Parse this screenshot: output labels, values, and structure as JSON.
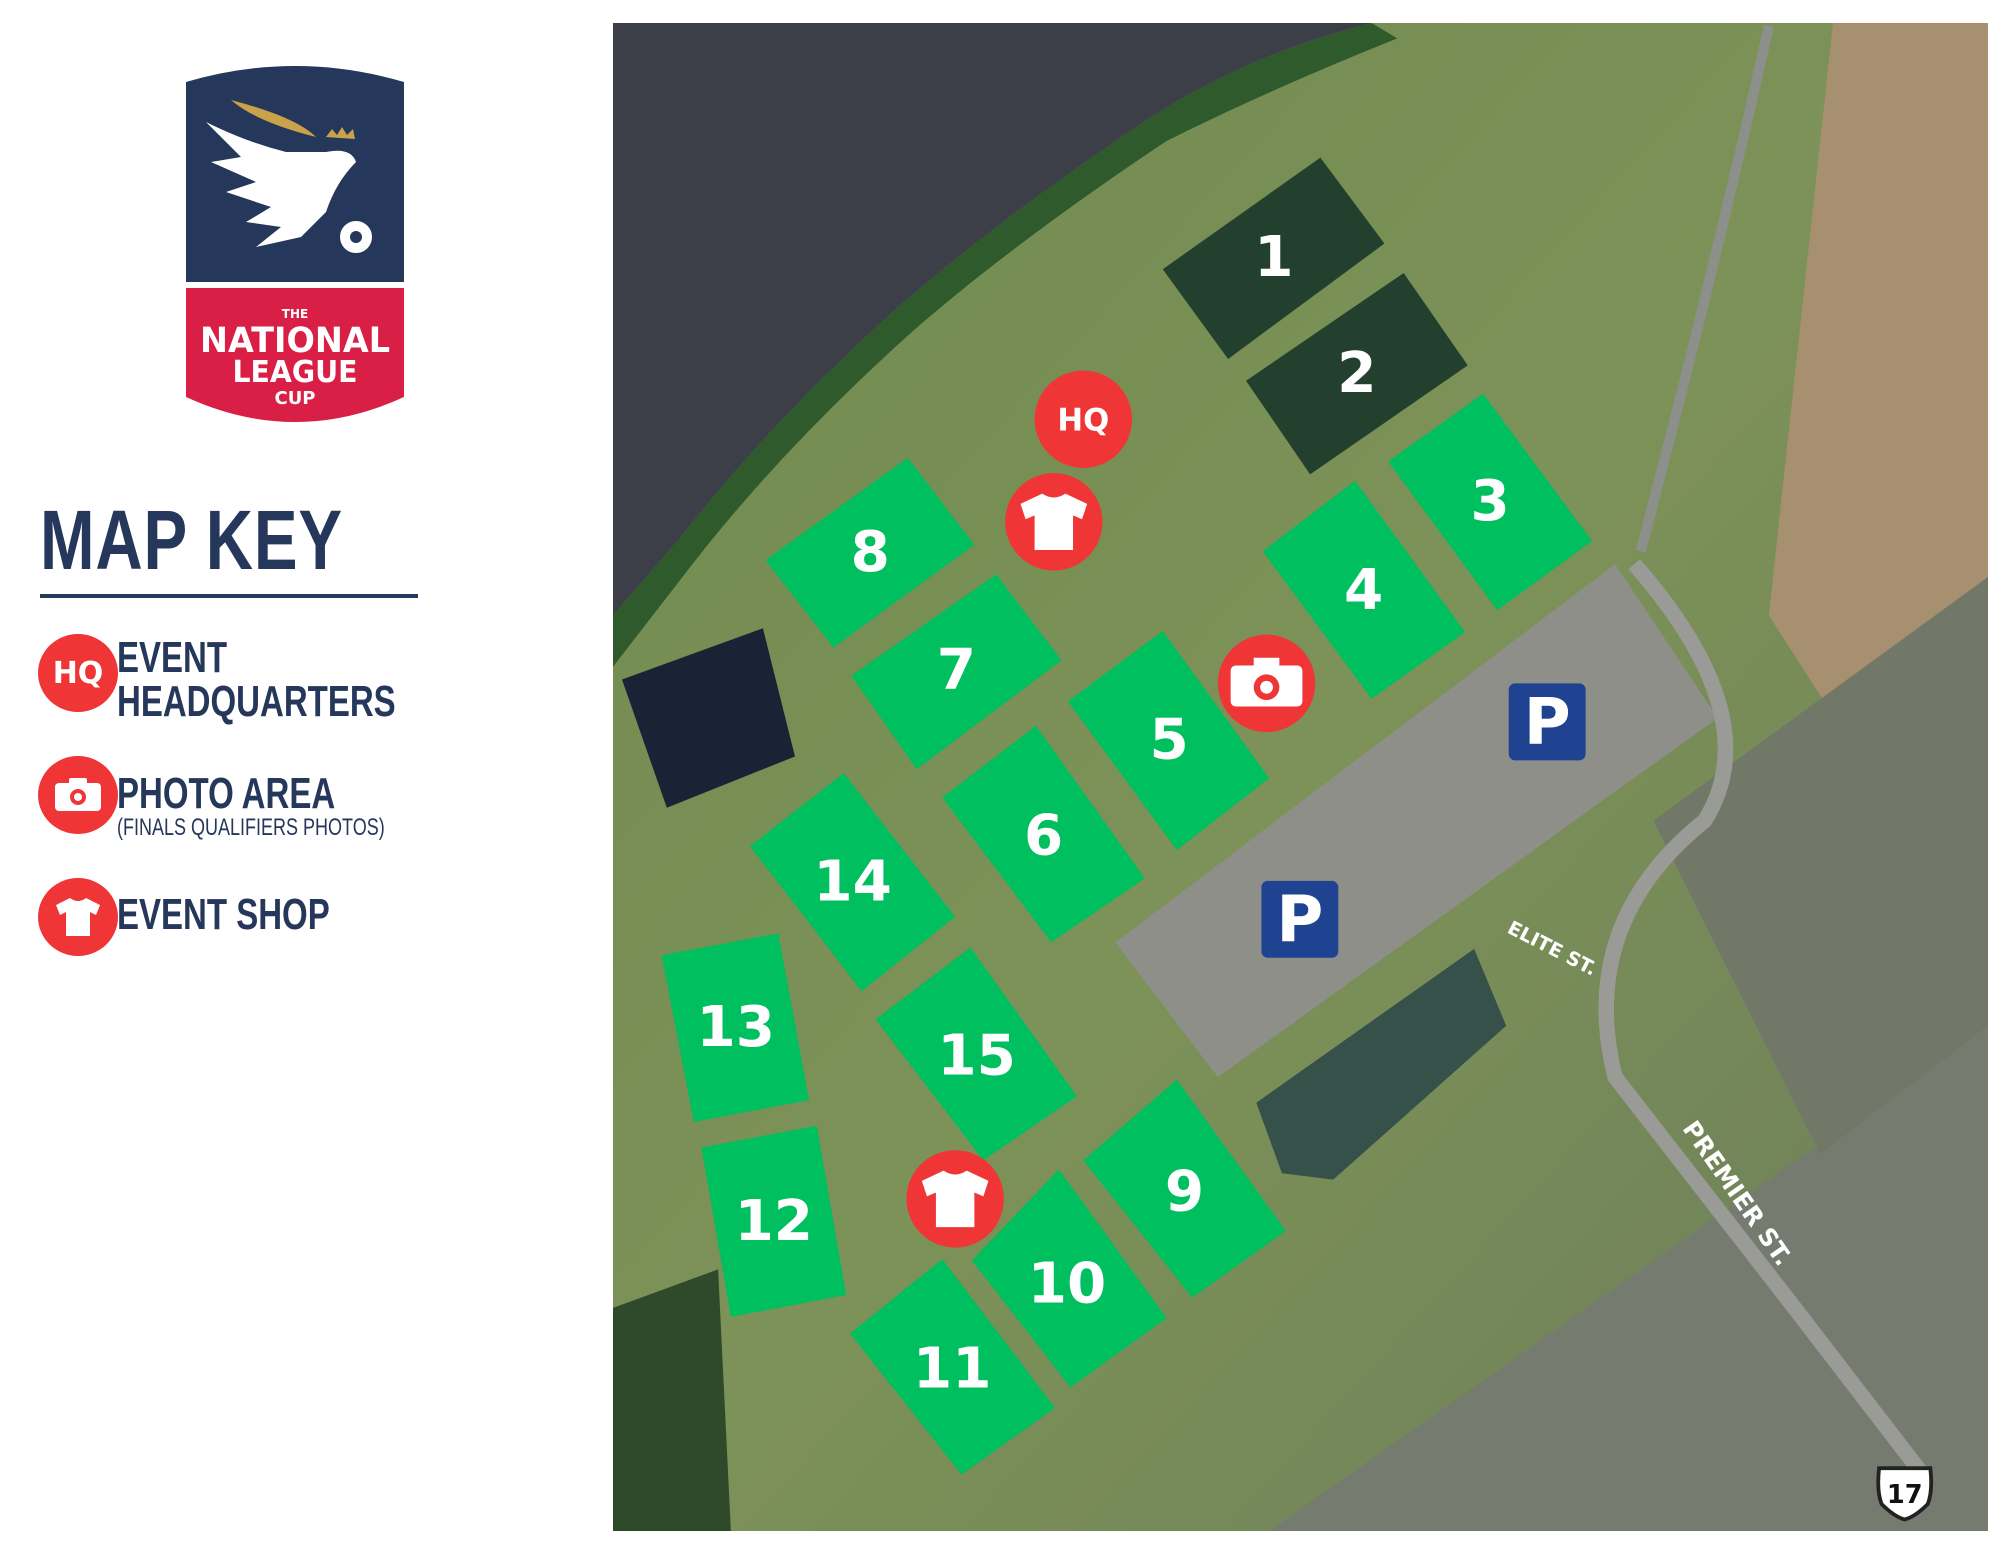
{
  "logo": {
    "line1": "THE",
    "line2": "NATIONAL",
    "line3": "LEAGUE",
    "line4": "CUP",
    "colors": {
      "navy": "#25375a",
      "red": "#d91f45",
      "gold": "#c9a24a"
    }
  },
  "key": {
    "title": "MAP KEY",
    "items": [
      {
        "icon": "hq-icon",
        "badge": "HQ",
        "label": "EVENT",
        "label2": "HEADQUARTERS"
      },
      {
        "icon": "camera-icon",
        "label": "PHOTO AREA",
        "sublabel": "(FINALS QUALIFIERS PHOTOS)"
      },
      {
        "icon": "tshirt-icon",
        "label": "EVENT SHOP"
      }
    ]
  },
  "map": {
    "colors": {
      "field_active": "#00bf5f",
      "field_dark": "#23402f",
      "marker": "#ef3535",
      "parking": "#1f4390"
    },
    "fields": [
      "1",
      "2",
      "3",
      "4",
      "5",
      "6",
      "7",
      "8",
      "9",
      "10",
      "11",
      "12",
      "13",
      "14",
      "15"
    ],
    "hq_badge": "HQ",
    "parking": "P",
    "streets": {
      "elite": "ELITE ST.",
      "premier": "PREMIER ST."
    },
    "route": "17"
  }
}
